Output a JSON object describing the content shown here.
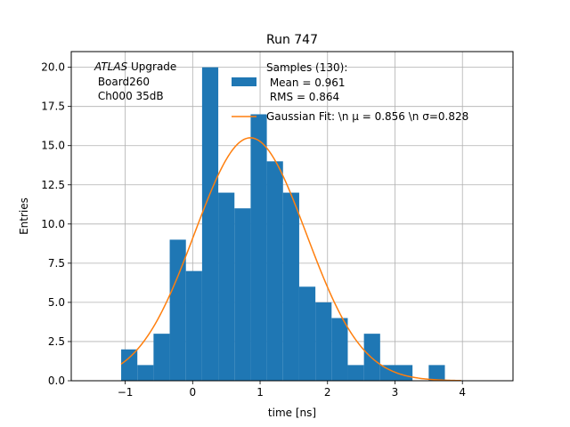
{
  "chart_data": {
    "type": "bar",
    "title": "Run 747",
    "xlabel": "time [ns]",
    "ylabel": "Entries",
    "xlim": [
      -1.8,
      4.75
    ],
    "ylim": [
      0,
      21
    ],
    "xticks": [
      -1,
      0,
      1,
      2,
      3,
      4
    ],
    "yticks": [
      0.0,
      2.5,
      5.0,
      7.5,
      10.0,
      12.5,
      15.0,
      17.5,
      20.0
    ],
    "grid": true,
    "annotation": {
      "prefix_italic": "ATLAS",
      "prefix_rest": " Upgrade",
      "line2": " Board260",
      "line3": " Ch000 35dB"
    },
    "histogram": {
      "bin_edges": [
        -1.06,
        -0.82,
        -0.58,
        -0.34,
        -0.1,
        0.14,
        0.38,
        0.62,
        0.86,
        1.1,
        1.34,
        1.58,
        1.82,
        2.06,
        2.3,
        2.54,
        2.78,
        3.02,
        3.26,
        3.5,
        3.74,
        3.98
      ],
      "counts": [
        2,
        1,
        3,
        9,
        7,
        20,
        12,
        11,
        17,
        14,
        12,
        6,
        5,
        4,
        1,
        3,
        1,
        1,
        0,
        1,
        0
      ],
      "color": "#1f77b4"
    },
    "fit": {
      "type": "gaussian",
      "mu": 0.856,
      "sigma": 0.828,
      "amplitude": 15.5,
      "x_range": [
        -1.06,
        3.98
      ],
      "color": "#ff7f0e"
    },
    "legend": {
      "location": "top-right",
      "entries": [
        {
          "kind": "patch",
          "color": "#1f77b4",
          "lines": [
            "Samples (130):",
            " Mean = 0.961",
            " RMS = 0.864"
          ]
        },
        {
          "kind": "line",
          "color": "#ff7f0e",
          "text": "Gaussian Fit: \\n μ = 0.856 \\n σ=0.828"
        }
      ]
    }
  }
}
